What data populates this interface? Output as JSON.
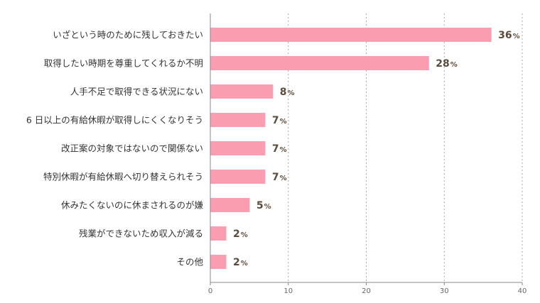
{
  "colors": {
    "bar": "#fb9db0",
    "grid": "#aaaaaa",
    "axis": "#888888",
    "value_text": "#5c4a3a"
  },
  "chart_data": {
    "type": "bar",
    "orientation": "horizontal",
    "categories": [
      "いざという時のために残しておきたい",
      "取得したい時期を尊重してくれるか不明",
      "人手不足で取得できる状況にない",
      "6 日以上の有給休暇が取得しにくくなりそう",
      "改正案の対象ではないので関係ない",
      "特別休暇が有給休暇へ切り替えられそう",
      "休みたくないのに休まされるのが嫌",
      "残業ができないため収入が減る",
      "その他"
    ],
    "values": [
      36,
      28,
      8,
      7,
      7,
      7,
      5,
      2,
      2
    ],
    "value_unit": "%",
    "xlim": [
      0,
      40
    ],
    "xticks": [
      0,
      10,
      20,
      30,
      40
    ],
    "grid": true,
    "grid_style": "dotted-vertical",
    "title": "",
    "xlabel": "",
    "ylabel": ""
  }
}
